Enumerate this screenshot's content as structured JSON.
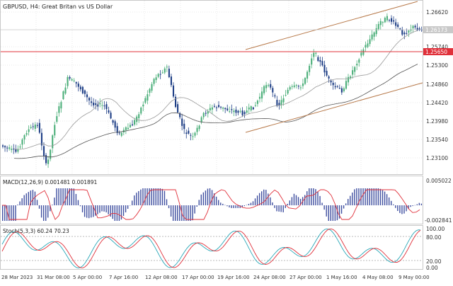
{
  "header": {
    "symbol_label": "GBPUSD, H4:  Great Britan vs US Dollar"
  },
  "price_panel": {
    "axis_labels": [
      "1.26620",
      "1.25740",
      "1.25300",
      "1.24860",
      "1.24420",
      "1.23980",
      "1.23540",
      "1.23100"
    ],
    "current_price": "1.26173",
    "level_price": "1.25650",
    "colors": {
      "bull": "#4caf7a",
      "bear": "#1f3f86",
      "level": "#e0303a",
      "channel": "#b87a4b",
      "ma_fast": "#9a9a9a",
      "ma_slow": "#555555",
      "grid": "#e8e8e8"
    }
  },
  "macd_panel": {
    "label": "MACD(12,26,9) 0.001481 0.001891",
    "axis_top": "0.005022",
    "axis_bottom": "-0.002841",
    "colors": {
      "hist": "#3f4fa0",
      "signal": "#e0303a"
    }
  },
  "stoch_panel": {
    "label": "Stoch(5,3,3) 60.24 70.23",
    "axis_labels": [
      "100.00",
      "80.00",
      "20.00",
      "0.00"
    ],
    "colors": {
      "main": "#2aa8b8",
      "signal": "#e0303a"
    }
  },
  "time_axis": [
    "28 Mar 2023",
    "31 Mar 08:00",
    "5 Apr 00:00",
    "7 Apr 16:00",
    "12 Apr 08:00",
    "17 Apr 00:00",
    "19 Apr 16:00",
    "24 Apr 08:00",
    "27 Apr 00:00",
    "1 May 16:00",
    "4 May 08:00",
    "9 May 00:00"
  ]
}
